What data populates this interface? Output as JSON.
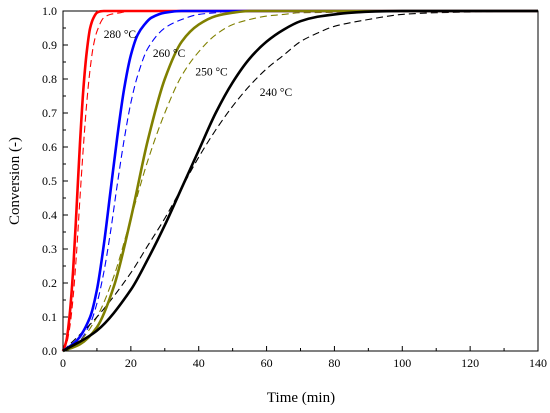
{
  "chart_data": {
    "type": "line",
    "title": "",
    "xlabel": "Time (min)",
    "ylabel": "Conversion (-)",
    "xlim": [
      0,
      140
    ],
    "ylim": [
      0,
      1.0
    ],
    "xticks": [
      0,
      20,
      40,
      60,
      80,
      100,
      120,
      140
    ],
    "yticks": [
      0.0,
      0.1,
      0.2,
      0.3,
      0.4,
      0.5,
      0.6,
      0.7,
      0.8,
      0.9,
      1.0
    ],
    "ytick_labels": [
      "0.0",
      "0.1",
      "0.2",
      "0.3",
      "0.4",
      "0.5",
      "0.6",
      "0.7",
      "0.8",
      "0.9",
      "1.0"
    ],
    "grid": false,
    "legend": "none",
    "series": [
      {
        "label": "280 °C",
        "style": "solid",
        "color": "#ff0000",
        "x": [
          0,
          1,
          2,
          3,
          4,
          5,
          6,
          7,
          8,
          9,
          10,
          11,
          12,
          15,
          20,
          140
        ],
        "y": [
          0,
          0.03,
          0.11,
          0.24,
          0.42,
          0.61,
          0.77,
          0.88,
          0.95,
          0.98,
          0.995,
          0.999,
          1.0,
          1.0,
          1.0,
          1.0
        ]
      },
      {
        "label": "280 °C",
        "style": "dashed",
        "color": "#ff0000",
        "x": [
          0,
          1,
          2,
          3,
          4,
          5,
          6,
          7,
          8,
          9,
          10,
          12,
          14,
          17,
          20,
          140
        ],
        "y": [
          0,
          0.02,
          0.07,
          0.16,
          0.29,
          0.45,
          0.6,
          0.73,
          0.83,
          0.9,
          0.94,
          0.98,
          0.99,
          0.995,
          1.0,
          1.0
        ]
      },
      {
        "label": "260 °C",
        "style": "solid",
        "color": "#0000ff",
        "x": [
          0,
          4,
          8,
          10,
          12,
          14,
          16,
          18,
          20,
          22,
          24,
          26,
          30,
          35,
          40,
          140
        ],
        "y": [
          0,
          0.03,
          0.1,
          0.18,
          0.31,
          0.47,
          0.63,
          0.77,
          0.87,
          0.93,
          0.96,
          0.98,
          0.995,
          1.0,
          1.0,
          1.0
        ]
      },
      {
        "label": "260 °C",
        "style": "dashed",
        "color": "#0000ff",
        "x": [
          0,
          4,
          8,
          10,
          12,
          14,
          16,
          18,
          20,
          22,
          25,
          30,
          35,
          40,
          45,
          50,
          140
        ],
        "y": [
          0,
          0.02,
          0.08,
          0.14,
          0.23,
          0.35,
          0.49,
          0.62,
          0.73,
          0.81,
          0.89,
          0.95,
          0.975,
          0.99,
          0.995,
          1.0,
          1.0
        ]
      },
      {
        "label": "250 °C",
        "style": "solid",
        "color": "#808000",
        "x": [
          0,
          5,
          10,
          15,
          20,
          25,
          30,
          35,
          40,
          45,
          50,
          55,
          60,
          140
        ],
        "y": [
          0,
          0.02,
          0.07,
          0.19,
          0.39,
          0.62,
          0.8,
          0.91,
          0.96,
          0.985,
          0.995,
          1.0,
          1.0,
          1.0
        ]
      },
      {
        "label": "250 °C",
        "style": "dashed",
        "color": "#808000",
        "x": [
          0,
          5,
          10,
          15,
          20,
          25,
          30,
          35,
          40,
          45,
          50,
          55,
          60,
          65,
          70,
          140
        ],
        "y": [
          0,
          0.03,
          0.1,
          0.22,
          0.39,
          0.56,
          0.7,
          0.81,
          0.88,
          0.93,
          0.96,
          0.975,
          0.985,
          0.99,
          0.995,
          1.0
        ]
      },
      {
        "label": "240 °C",
        "style": "solid",
        "color": "#000000",
        "x": [
          0,
          10,
          20,
          25,
          30,
          35,
          40,
          45,
          50,
          55,
          60,
          65,
          70,
          75,
          80,
          85,
          90,
          100,
          110,
          140
        ],
        "y": [
          0,
          0.06,
          0.18,
          0.27,
          0.37,
          0.48,
          0.59,
          0.7,
          0.79,
          0.86,
          0.91,
          0.945,
          0.97,
          0.983,
          0.99,
          0.995,
          0.998,
          1.0,
          1.0,
          1.0
        ]
      },
      {
        "label": "240 °C",
        "style": "dashed",
        "color": "#000000",
        "x": [
          0,
          10,
          20,
          25,
          30,
          35,
          40,
          45,
          50,
          55,
          60,
          65,
          70,
          75,
          80,
          90,
          100,
          110,
          120,
          140
        ],
        "y": [
          0,
          0.1,
          0.23,
          0.31,
          0.39,
          0.48,
          0.57,
          0.65,
          0.72,
          0.78,
          0.83,
          0.87,
          0.91,
          0.935,
          0.955,
          0.975,
          0.99,
          0.995,
          0.997,
          1.0
        ]
      }
    ],
    "annotations": [
      {
        "text": "280 °C",
        "x": 12.0,
        "y": 0.92
      },
      {
        "text": "260 °C",
        "x": 26.5,
        "y": 0.865
      },
      {
        "text": "250 °C",
        "x": 39.0,
        "y": 0.81
      },
      {
        "text": "240 °C",
        "x": 58.0,
        "y": 0.75
      }
    ]
  }
}
